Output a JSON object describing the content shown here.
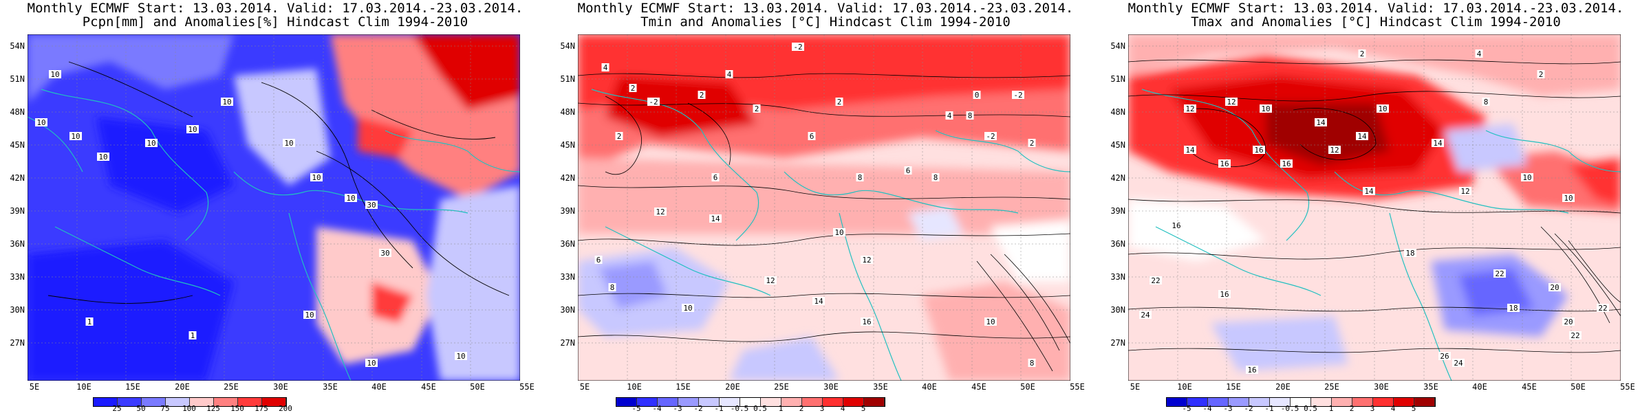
{
  "panels": [
    {
      "title1": "Monthly ECMWF Start: 13.03.2014. Valid: 17.03.2014.-23.03.2014.",
      "title2": "Pcpn[mm] and Anomalies[%] Hindcast Clim 1994-2010",
      "variable": "precipitation",
      "colorbar_labels": [
        "25",
        "50",
        "75",
        "100",
        "125",
        "150",
        "175",
        "200"
      ],
      "contour_labels": [
        "10",
        "10",
        "10",
        "10",
        "10",
        "10",
        "10",
        "10",
        "10",
        "10",
        "30",
        "30",
        "10",
        "1",
        "1",
        "10",
        "10"
      ]
    },
    {
      "title1": "Monthly ECMWF Start: 13.03.2014. Valid: 17.03.2014.-23.03.2014.",
      "title2": "Tmin and Anomalies [°C] Hindcast Clim 1994-2010",
      "variable": "tmin",
      "colorbar_labels": [
        "-5",
        "-4",
        "-3",
        "-2",
        "-1",
        "-0.5",
        "0.5",
        "1",
        "2",
        "3",
        "4",
        "5"
      ],
      "contour_labels": [
        "-2",
        "4",
        "4",
        "2",
        "-2",
        "2",
        "2",
        "2",
        "0",
        "2",
        "6",
        "6",
        "8",
        "12",
        "14",
        "10",
        "12",
        "6",
        "8",
        "4",
        "8",
        "-2",
        "-2",
        "2",
        "6",
        "8",
        "10",
        "12",
        "14",
        "16",
        "10",
        "8"
      ]
    },
    {
      "title1": "Monthly ECMWF Start: 13.03.2014. Valid: 17.03.2014.-23.03.2014.",
      "title2": "Tmax and Anomalies [°C] Hindcast Clim 1994-2010",
      "variable": "tmax",
      "colorbar_labels": [
        "-5",
        "-4",
        "-3",
        "-2",
        "-1",
        "-0.5",
        "0.5",
        "1",
        "2",
        "3",
        "4",
        "5"
      ],
      "contour_labels": [
        "2",
        "4",
        "2",
        "12",
        "10",
        "8",
        "12",
        "10",
        "14",
        "14",
        "16",
        "12",
        "14",
        "14",
        "16",
        "16",
        "14",
        "12",
        "10",
        "10",
        "16",
        "22",
        "24",
        "16",
        "18",
        "22",
        "20",
        "20",
        "22",
        "18",
        "22",
        "26",
        "24",
        "16"
      ]
    }
  ],
  "lat_labels": [
    "54N",
    "51N",
    "48N",
    "45N",
    "42N",
    "39N",
    "36N",
    "33N",
    "30N",
    "27N"
  ],
  "lon_labels": [
    "5E",
    "10E",
    "15E",
    "20E",
    "25E",
    "30E",
    "35E",
    "40E",
    "45E",
    "50E",
    "55E"
  ],
  "colors": {
    "precip_scale": [
      "#1a1aff",
      "#3b3bff",
      "#7a7aff",
      "#c8c8ff",
      "#ffcaca",
      "#ff8080",
      "#ff3a3a",
      "#e00000"
    ],
    "temp_scale": [
      "#0000d0",
      "#3030ff",
      "#6666ff",
      "#9a9aff",
      "#c8c8ff",
      "#e6e6ff",
      "#ffffff",
      "#ffe0e0",
      "#ffb0b0",
      "#ff7070",
      "#ff3030",
      "#e00000",
      "#a00000"
    ],
    "coast": "#20c0c0"
  }
}
